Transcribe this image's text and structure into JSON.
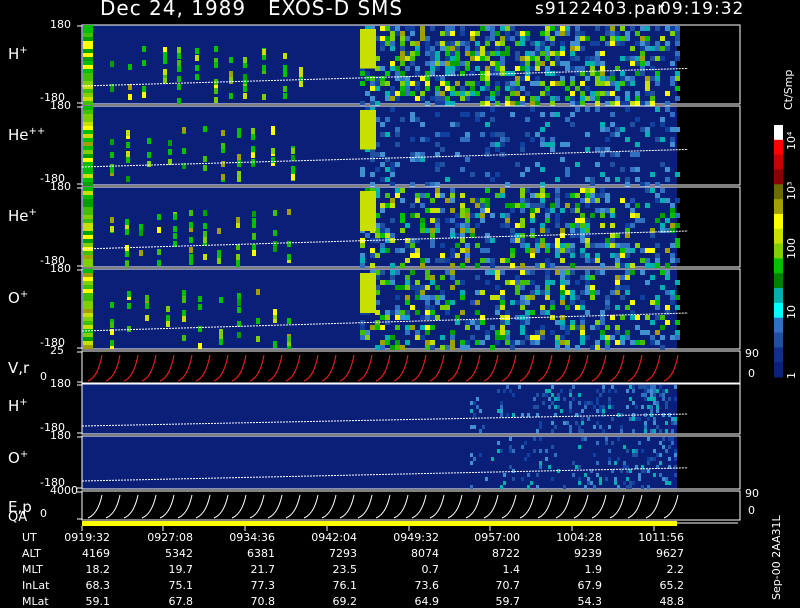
{
  "header": {
    "date": "Dec 24, 1989",
    "instrument": "EXOS-D SMS",
    "file": "s9122403.par",
    "time": "09:19:32"
  },
  "panels": [
    {
      "id": "h_plus_1",
      "label_base": "H",
      "label_sup": "+",
      "ytop": "180",
      "ybot": "-180",
      "top": 25,
      "bottom": 104,
      "kind": "spectrogram",
      "seed": 11,
      "density": 0.55
    },
    {
      "id": "he_pp",
      "label_base": "He",
      "label_sup": "++",
      "ytop": "180",
      "ybot": "-180",
      "top": 106,
      "bottom": 185,
      "kind": "spectrogram",
      "seed": 23,
      "density": 0.18
    },
    {
      "id": "he_plus",
      "label_base": "He",
      "label_sup": "+",
      "ytop": "180",
      "ybot": "-180",
      "top": 187,
      "bottom": 267,
      "kind": "spectrogram",
      "seed": 37,
      "density": 0.4
    },
    {
      "id": "o_plus_1",
      "label_base": "O",
      "label_sup": "+",
      "ytop": "180",
      "ybot": "-180",
      "top": 269,
      "bottom": 349,
      "kind": "spectrogram",
      "seed": 51,
      "density": 0.4
    },
    {
      "id": "vr",
      "label_base": "V,r",
      "label_sup": "",
      "ytop": "25",
      "ybot": "0",
      "top": 351,
      "bottom": 383,
      "kind": "sawtooth",
      "color": "#ff2020",
      "right_top": "90",
      "right_bot": "0"
    },
    {
      "id": "h_plus_2",
      "label_base": "H",
      "label_sup": "+",
      "ytop": "180",
      "ybot": "-180",
      "top": 384,
      "bottom": 434,
      "kind": "sparse",
      "seed": 67,
      "density": 0.25
    },
    {
      "id": "o_plus_2",
      "label_base": "O",
      "label_sup": "+",
      "ytop": "180",
      "ybot": "-180",
      "top": 436,
      "bottom": 489,
      "kind": "sparse",
      "seed": 79,
      "density": 0.22
    },
    {
      "id": "ep",
      "label_base": "E,p",
      "label_sup": "",
      "ytop": "4000",
      "ybot": "0",
      "top": 491,
      "bottom": 520,
      "kind": "sawtooth",
      "color": "#ffffff",
      "right_top": "90",
      "right_bot": "0"
    }
  ],
  "qa_label": "QA",
  "colorbar": {
    "unit": "Ct/Smp",
    "labels": [
      "10⁴",
      "10³",
      "100",
      "10",
      "1"
    ],
    "colors": [
      "#ffffff",
      "#ff0000",
      "#c80000",
      "#8b0000",
      "#6b6b00",
      "#a0a000",
      "#ffff00",
      "#c8e000",
      "#80d000",
      "#00c000",
      "#008000",
      "#00b0b0",
      "#00ffff",
      "#3070c0",
      "#2050a0",
      "#10308a",
      "#0a207a"
    ]
  },
  "chart_data": {
    "type": "heatmap",
    "title": "Dec 24, 1989 EXOS-D SMS",
    "x_ticks": [
      "0919:32",
      "0927:08",
      "0934:36",
      "0942:04",
      "0949:32",
      "0957:00",
      "1004:28",
      "1011:56"
    ],
    "ephemeris": [
      {
        "name": "UT",
        "values": [
          "0919:32",
          "0927:08",
          "0934:36",
          "0942:04",
          "0949:32",
          "0957:00",
          "1004:28",
          "1011:56"
        ]
      },
      {
        "name": "ALT",
        "values": [
          "4169",
          "5342",
          "6381",
          "7293",
          "8074",
          "8722",
          "9239",
          "9627"
        ]
      },
      {
        "name": "MLT",
        "values": [
          "18.2",
          "19.7",
          "21.7",
          "23.5",
          "0.7",
          "1.4",
          "1.9",
          "2.2"
        ]
      },
      {
        "name": "InLat",
        "values": [
          "68.3",
          "75.1",
          "77.3",
          "76.1",
          "73.6",
          "70.7",
          "67.9",
          "65.2"
        ]
      },
      {
        "name": "MLat",
        "values": [
          "59.1",
          "67.8",
          "70.8",
          "69.2",
          "64.9",
          "59.7",
          "54.3",
          "48.8"
        ]
      }
    ],
    "y_range_pitch": [
      -180,
      180
    ],
    "y_range_vr": [
      0,
      25
    ],
    "y_range_ep": [
      0,
      4000
    ]
  },
  "footer_id": "Sep-00 2AA31L"
}
